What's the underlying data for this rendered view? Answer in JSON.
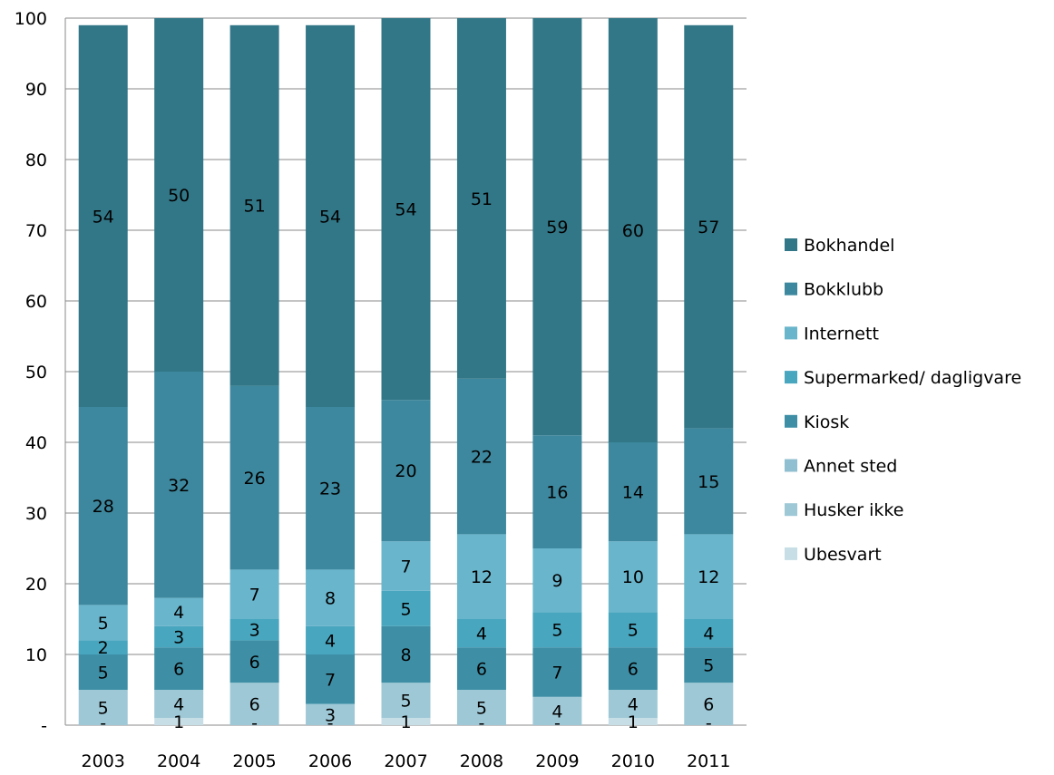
{
  "chart_data": {
    "type": "bar",
    "stacked": true,
    "categories": [
      "2003",
      "2004",
      "2005",
      "2006",
      "2007",
      "2008",
      "2009",
      "2010",
      "2011"
    ],
    "series": [
      {
        "name": "Ubesvart",
        "color": "#c8dee6",
        "values": [
          0,
          1,
          0,
          0,
          1,
          0,
          0,
          1,
          0
        ],
        "labels": [
          "-",
          "1",
          "-",
          "-",
          "1",
          "-",
          "-",
          "1",
          "-"
        ]
      },
      {
        "name": "Husker ikke",
        "color": "#9ec8d6",
        "values": [
          5,
          4,
          6,
          3,
          5,
          5,
          4,
          4,
          6
        ],
        "labels": [
          "5",
          "4",
          "6",
          "3",
          "5",
          "5",
          "4",
          "4",
          "6"
        ]
      },
      {
        "name": "Kiosk",
        "color": "#3e8fa6",
        "values": [
          5,
          6,
          6,
          7,
          8,
          6,
          7,
          6,
          5
        ],
        "labels": [
          "5",
          "6",
          "6",
          "7",
          "8",
          "6",
          "7",
          "6",
          "5"
        ]
      },
      {
        "name": "Supermarked/ dagligvare",
        "color": "#48a6bf",
        "values": [
          2,
          3,
          3,
          4,
          5,
          4,
          5,
          5,
          4
        ],
        "labels": [
          "2",
          "3",
          "3",
          "4",
          "5",
          "4",
          "5",
          "5",
          "4"
        ]
      },
      {
        "name": "Internett",
        "color": "#69b5cc",
        "values": [
          5,
          4,
          7,
          8,
          7,
          12,
          9,
          10,
          12
        ],
        "labels": [
          "5",
          "4",
          "7",
          "8",
          "7",
          "12",
          "9",
          "10",
          "12"
        ]
      },
      {
        "name": "Bokklubb",
        "color": "#3d889e",
        "values": [
          28,
          32,
          26,
          23,
          20,
          22,
          16,
          14,
          15
        ],
        "labels": [
          "28",
          "32",
          "26",
          "23",
          "20",
          "22",
          "16",
          "14",
          "15"
        ]
      },
      {
        "name": "Bokhandel",
        "color": "#327787",
        "values": [
          54,
          50,
          51,
          54,
          54,
          51,
          59,
          60,
          57
        ],
        "labels": [
          "54",
          "50",
          "51",
          "54",
          "54",
          "51",
          "59",
          "60",
          "57"
        ]
      }
    ],
    "legend_order": [
      "Bokhandel",
      "Bokklubb",
      "Internett",
      "Supermarked/ dagligvare",
      "Kiosk",
      "Annet sted",
      "Husker ikke",
      "Ubesvart"
    ],
    "legend_colors": {
      "Bokhandel": "#327787",
      "Bokklubb": "#3d889e",
      "Internett": "#69b5cc",
      "Supermarked/ dagligvare": "#48a6bf",
      "Kiosk": "#3e8fa6",
      "Annet sted": "#8fbfd0",
      "Husker ikke": "#9ec8d6",
      "Ubesvart": "#c8dee6"
    },
    "y_ticks": [
      "-",
      "10",
      "20",
      "30",
      "40",
      "50",
      "60",
      "70",
      "80",
      "90",
      "100"
    ],
    "ylim": [
      0,
      100
    ],
    "grid": true,
    "legend_position": "right",
    "title": "",
    "xlabel": "",
    "ylabel": ""
  }
}
